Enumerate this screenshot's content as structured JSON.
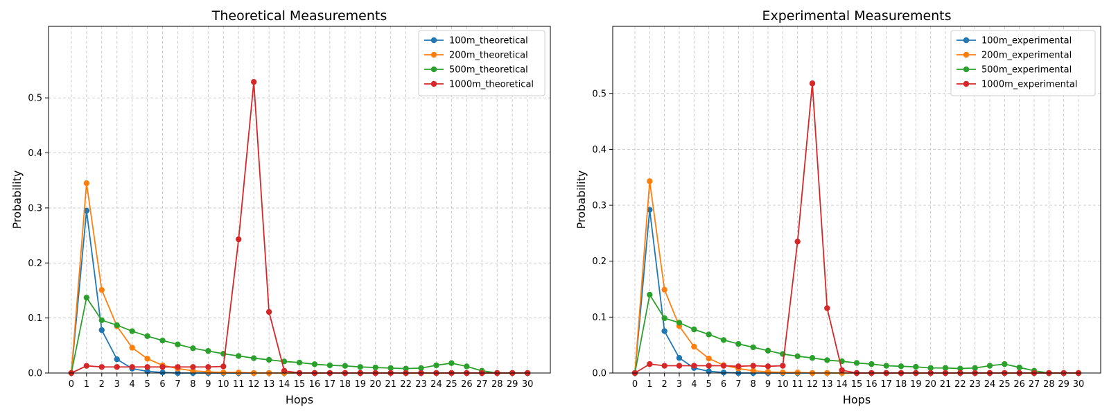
{
  "chart_data": [
    {
      "type": "line",
      "title": "Theoretical Measurements",
      "xlabel": "Hops",
      "ylabel": "Probability",
      "xlim": [
        -1.5,
        31.5
      ],
      "ylim": [
        0,
        0.63
      ],
      "x": [
        0,
        1,
        2,
        3,
        4,
        5,
        6,
        7,
        8,
        9,
        10,
        11,
        12,
        13,
        14,
        15,
        16,
        17,
        18,
        19,
        20,
        21,
        22,
        23,
        24,
        25,
        26,
        27,
        28,
        29,
        30
      ],
      "x_tick_labels": [
        "0",
        "1",
        "2",
        "3",
        "4",
        "5",
        "6",
        "7",
        "8",
        "9",
        "10",
        "11",
        "12",
        "13",
        "14",
        "15",
        "16",
        "17",
        "18",
        "19",
        "20",
        "21",
        "22",
        "23",
        "24",
        "25",
        "26",
        "27",
        "28",
        "29",
        "30"
      ],
      "y_ticks": [
        0,
        0.1,
        0.2,
        0.3,
        0.4,
        0.5
      ],
      "y_tick_labels": [
        "0.0",
        "0.1",
        "0.2",
        "0.3",
        "0.4",
        "0.5"
      ],
      "grid": true,
      "legend_position": "top-right",
      "series": [
        {
          "name": "100m_theoretical",
          "color": "#1f77b4",
          "values": [
            0,
            0.295,
            0.078,
            0.025,
            0.008,
            0.003,
            0.001,
            0,
            0,
            0,
            0,
            0,
            0,
            0,
            0,
            0,
            0,
            0,
            0,
            0,
            0,
            0,
            0,
            0,
            0,
            0,
            0,
            0,
            0,
            0,
            0
          ]
        },
        {
          "name": "200m_theoretical",
          "color": "#ff7f0e",
          "values": [
            0,
            0.345,
            0.151,
            0.085,
            0.046,
            0.026,
            0.014,
            0.008,
            0.004,
            0.002,
            0.001,
            0.001,
            0,
            0,
            0,
            0,
            0,
            0,
            0,
            0,
            0,
            0,
            0,
            0,
            0,
            0,
            0,
            0,
            0,
            0,
            0
          ]
        },
        {
          "name": "500m_theoretical",
          "color": "#2ca02c",
          "values": [
            0,
            0.137,
            0.096,
            0.087,
            0.076,
            0.067,
            0.059,
            0.052,
            0.045,
            0.04,
            0.035,
            0.031,
            0.027,
            0.024,
            0.021,
            0.019,
            0.016,
            0.014,
            0.013,
            0.011,
            0.01,
            0.009,
            0.008,
            0.009,
            0.014,
            0.018,
            0.012,
            0.004,
            0,
            0,
            0
          ]
        },
        {
          "name": "1000m_theoretical",
          "color": "#d62728",
          "values": [
            0,
            0.013,
            0.011,
            0.011,
            0.011,
            0.011,
            0.011,
            0.011,
            0.011,
            0.011,
            0.012,
            0.243,
            0.529,
            0.111,
            0.004,
            0,
            0,
            0,
            0,
            0,
            0,
            0,
            0,
            0,
            0,
            0,
            0,
            0,
            0,
            0,
            0
          ]
        }
      ]
    },
    {
      "type": "line",
      "title": "Experimental Measurements",
      "xlabel": "Hops",
      "ylabel": "Probability",
      "xlim": [
        -1.5,
        31.5
      ],
      "ylim": [
        0,
        0.62
      ],
      "x": [
        0,
        1,
        2,
        3,
        4,
        5,
        6,
        7,
        8,
        9,
        10,
        11,
        12,
        13,
        14,
        15,
        16,
        17,
        18,
        19,
        20,
        21,
        22,
        23,
        24,
        25,
        26,
        27,
        28,
        29,
        30
      ],
      "x_tick_labels": [
        "0",
        "1",
        "2",
        "3",
        "4",
        "5",
        "6",
        "7",
        "8",
        "9",
        "10",
        "11",
        "12",
        "13",
        "14",
        "15",
        "16",
        "17",
        "18",
        "19",
        "20",
        "21",
        "22",
        "23",
        "24",
        "25",
        "26",
        "27",
        "28",
        "29",
        "30"
      ],
      "y_ticks": [
        0,
        0.1,
        0.2,
        0.3,
        0.4,
        0.5
      ],
      "y_tick_labels": [
        "0.0",
        "0.1",
        "0.2",
        "0.3",
        "0.4",
        "0.5"
      ],
      "grid": true,
      "legend_position": "top-right",
      "series": [
        {
          "name": "100m_experimental",
          "color": "#1f77b4",
          "values": [
            0,
            0.292,
            0.075,
            0.027,
            0.009,
            0.003,
            0.001,
            0,
            0,
            0,
            0,
            0,
            0,
            0,
            0,
            0,
            0,
            0,
            0,
            0,
            0,
            0,
            0,
            0,
            0,
            0,
            0,
            0,
            0,
            0,
            0
          ]
        },
        {
          "name": "200m_experimental",
          "color": "#ff7f0e",
          "values": [
            0,
            0.343,
            0.149,
            0.084,
            0.047,
            0.026,
            0.014,
            0.008,
            0.004,
            0.002,
            0.001,
            0.001,
            0,
            0,
            0,
            0,
            0,
            0,
            0,
            0,
            0,
            0,
            0,
            0,
            0,
            0,
            0,
            0,
            0,
            0,
            0
          ]
        },
        {
          "name": "500m_experimental",
          "color": "#2ca02c",
          "values": [
            0,
            0.14,
            0.098,
            0.09,
            0.078,
            0.069,
            0.059,
            0.052,
            0.046,
            0.04,
            0.034,
            0.03,
            0.027,
            0.023,
            0.021,
            0.018,
            0.016,
            0.013,
            0.012,
            0.011,
            0.009,
            0.009,
            0.008,
            0.009,
            0.013,
            0.016,
            0.01,
            0.004,
            0,
            0,
            0
          ]
        },
        {
          "name": "1000m_experimental",
          "color": "#d62728",
          "values": [
            0,
            0.016,
            0.013,
            0.013,
            0.013,
            0.013,
            0.013,
            0.012,
            0.013,
            0.012,
            0.013,
            0.235,
            0.518,
            0.116,
            0.005,
            0,
            0,
            0,
            0,
            0,
            0,
            0,
            0,
            0,
            0,
            0,
            0,
            0,
            0,
            0,
            0
          ]
        }
      ]
    }
  ]
}
